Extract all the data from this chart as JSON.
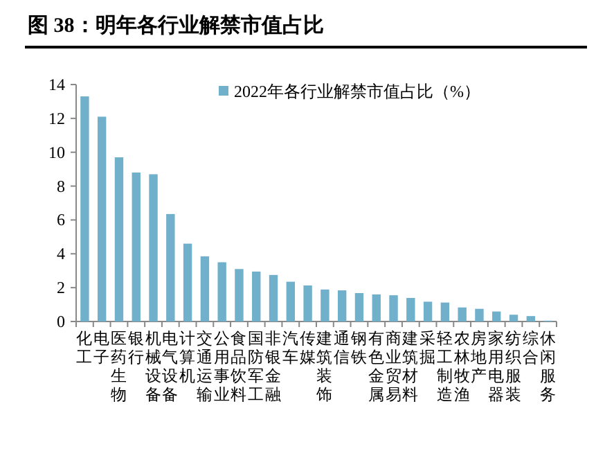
{
  "chart_data": {
    "type": "bar",
    "title": "图 38：明年各行业解禁市值占比",
    "categories": [
      "化工",
      "电子",
      "医药生物",
      "银行",
      "机械设备",
      "电气设备",
      "计算机",
      "交通运输",
      "公用事业",
      "食品饮料",
      "国防军工",
      "非银金融",
      "汽车",
      "传媒",
      "建筑装饰",
      "通信",
      "钢铁",
      "有色金属",
      "商业贸易",
      "建筑材料",
      "采掘",
      "轻工制造",
      "农林牧渔",
      "房地产",
      "家用电器",
      "纺织服装",
      "综合",
      "休闲服务"
    ],
    "series": [
      {
        "name": "2022年各行业解禁市值占比（%）",
        "color": "#70b0cb",
        "values": [
          13.3,
          12.1,
          9.7,
          8.8,
          8.7,
          6.35,
          4.6,
          3.85,
          3.5,
          3.1,
          2.95,
          2.75,
          2.35,
          2.13,
          1.89,
          1.84,
          1.68,
          1.6,
          1.55,
          1.39,
          1.17,
          1.12,
          0.83,
          0.75,
          0.59,
          0.4,
          0.32,
          0.05
        ]
      }
    ],
    "ylim": [
      0,
      14
    ],
    "yticks": [
      0,
      2,
      4,
      6,
      8,
      10,
      12,
      14
    ],
    "legend": "top"
  }
}
